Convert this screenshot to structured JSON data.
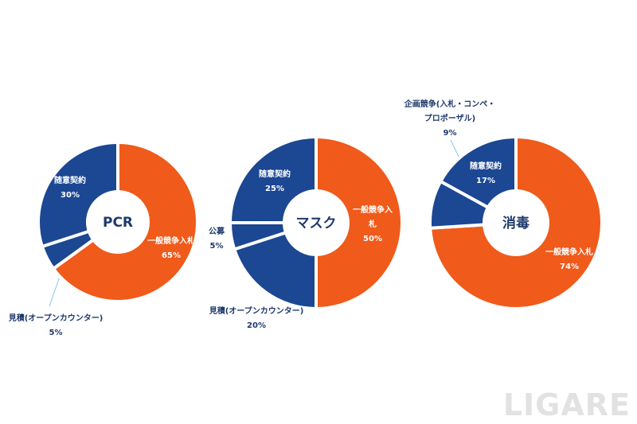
{
  "chart_data": [
    {
      "type": "pie",
      "center_label": "PCR",
      "categories": [
        "一般競争入札",
        "見積(オープンカウンター)",
        "随意契約"
      ],
      "values": [
        65,
        5,
        30
      ],
      "value_labels": [
        "65%",
        "5%",
        "30%"
      ],
      "colors": [
        "#f05a1a",
        "#1b4793",
        "#1b4793"
      ]
    },
    {
      "type": "pie",
      "center_label": "マスク",
      "categories": [
        "一般競争入札",
        "見積(オープンカウンター)",
        "公募",
        "随意契約"
      ],
      "values": [
        50,
        20,
        5,
        25
      ],
      "value_labels": [
        "50%",
        "20%",
        "5%",
        "25%"
      ],
      "colors": [
        "#f05a1a",
        "#1b4793",
        "#1b4793",
        "#1b4793"
      ]
    },
    {
      "type": "pie",
      "center_label": "消毒",
      "categories": [
        "一般競争入札",
        "企画競争(入札・コンペ・\nプロポーザル)",
        "随意契約"
      ],
      "values": [
        74,
        9,
        17
      ],
      "value_labels": [
        "74%",
        "9%",
        "17%"
      ],
      "colors": [
        "#f05a1a",
        "#1b4793",
        "#1b4793"
      ]
    }
  ],
  "watermark": "LIGARE"
}
